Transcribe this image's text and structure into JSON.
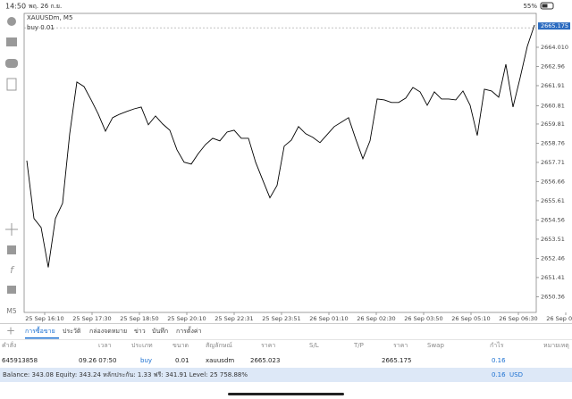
{
  "status_bar": {
    "time": "14:50",
    "date": "พฤ. 26 ก.ย.",
    "battery": "55%"
  },
  "chart_data": {
    "type": "line",
    "title": "XAUUSDm, M5",
    "order_label": "buy 0.01",
    "price_marker": {
      "value": 2665.175,
      "label": "2665.175"
    },
    "x_labels": [
      "25 Sep 16:10",
      "25 Sep 17:30",
      "25 Sep 18:50",
      "25 Sep 20:10",
      "25 Sep 22:31",
      "25 Sep 23:51",
      "26 Sep 01:10",
      "26 Sep 02:30",
      "26 Sep 03:50",
      "26 Sep 05:10",
      "26 Sep 06:30",
      "26 Sep 07:50"
    ],
    "series": [
      {
        "name": "XAUUSDm",
        "color": "#000000",
        "values": [
          2657.81,
          2654.64,
          2654.15,
          2651.96,
          2654.64,
          2655.47,
          2659.28,
          2662.11,
          2661.86,
          2661.13,
          2660.35,
          2659.42,
          2660.16,
          2660.35,
          2660.5,
          2660.64,
          2660.74,
          2659.77,
          2660.25,
          2659.81,
          2659.47,
          2658.4,
          2657.72,
          2657.62,
          2658.2,
          2658.69,
          2659.03,
          2658.89,
          2659.37,
          2659.47,
          2659.03,
          2659.03,
          2657.72,
          2656.74,
          2655.77,
          2656.45,
          2658.6,
          2658.93,
          2659.67,
          2659.28,
          2659.08,
          2658.79,
          2659.23,
          2659.67,
          2659.91,
          2660.16,
          2658.99,
          2657.91,
          2658.89,
          2661.18,
          2661.13,
          2660.99,
          2660.99,
          2661.23,
          2661.81,
          2661.57,
          2660.84,
          2661.57,
          2661.18,
          2661.18,
          2661.13,
          2661.62,
          2660.84,
          2659.18,
          2661.72,
          2661.62,
          2661.28,
          2663.08,
          2660.74,
          2662.35,
          2664.06,
          2665.23
        ]
      }
    ],
    "ylim": [
      2649.5,
      2665.865
    ],
    "yticks": [
      {
        "value": 2664.01,
        "label": "2664.010"
      },
      2662.96,
      2661.91,
      2660.81,
      2659.81,
      2658.76,
      2657.71,
      2656.66,
      2655.61,
      2654.56,
      2653.51,
      2652.46,
      2651.41,
      2650.36
    ]
  },
  "toolbar": {
    "timeframe": "M5"
  },
  "tabs": [
    "การซื้อขาย",
    "ประวัติ",
    "กล่องจดหมาย",
    "ข่าว",
    "บันทึก",
    "การตั้งค่า"
  ],
  "table": {
    "columns": [
      "คำสั่ง",
      "เวลา",
      "ประเภท",
      "ขนาด",
      "สัญลักษณ์",
      "ราคา",
      "S/L",
      "T/P",
      "ราคา",
      "Swap",
      "กำไร",
      "หมายเหตุ"
    ],
    "rows": [
      [
        "645913858",
        "09.26 07:50",
        "buy",
        "0.01",
        "xauusdm",
        "2665.023",
        null,
        null,
        "2665.175",
        null,
        "0.16",
        null
      ]
    ]
  },
  "footer": {
    "summary": "Balance: 343.08 Equity: 343.24 หลักประกัน: 1.33 ฟรี: 341.91 Level: 25 758.88%",
    "profit": "0.16",
    "currency": "USD"
  }
}
